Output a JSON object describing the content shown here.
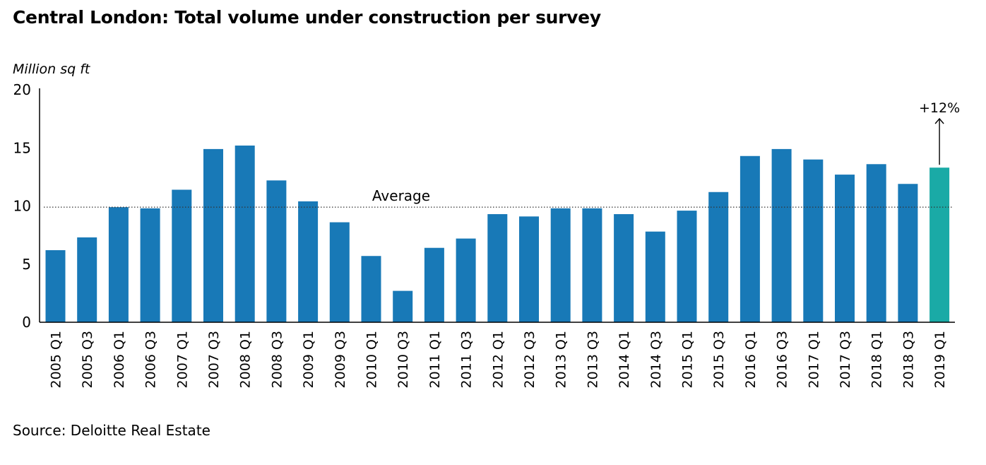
{
  "title": "Central London: Total volume under construction per survey",
  "source": "Source: Deloitte Real Estate",
  "colors": {
    "bar": "#1879b7",
    "highlight": "#1aaaa6",
    "axis": "#000000"
  },
  "chart_data": {
    "type": "bar",
    "ylabel": "Million sq ft",
    "ylim": [
      0,
      20
    ],
    "yticks": [
      0,
      5,
      10,
      15,
      20
    ],
    "categories": [
      "2005 Q1",
      "2005 Q3",
      "2006 Q1",
      "2006 Q3",
      "2007 Q1",
      "2007 Q3",
      "2008 Q1",
      "2008 Q3",
      "2009 Q1",
      "2009 Q3",
      "2010 Q1",
      "2010 Q3",
      "2011 Q1",
      "2011 Q3",
      "2012 Q1",
      "2012 Q3",
      "2013 Q1",
      "2013 Q3",
      "2014 Q1",
      "2014 Q3",
      "2015 Q1",
      "2015 Q3",
      "2016 Q1",
      "2016 Q3",
      "2017 Q1",
      "2017 Q3",
      "2018 Q1",
      "2018 Q3",
      "2019 Q1"
    ],
    "values": [
      6.2,
      7.3,
      9.9,
      9.8,
      11.4,
      14.9,
      15.2,
      12.2,
      10.4,
      8.6,
      5.7,
      2.7,
      6.4,
      7.2,
      9.3,
      9.1,
      9.8,
      9.8,
      9.3,
      7.8,
      9.6,
      11.2,
      14.3,
      14.9,
      14.0,
      12.7,
      13.6,
      11.9,
      13.3
    ],
    "highlight_index": 28,
    "reference_line": {
      "label": "Average",
      "value": 9.9,
      "style": "dotted"
    },
    "annotation": {
      "text": "+12%",
      "category": "2019 Q1",
      "arrow": "up"
    },
    "grid": false,
    "legend": false
  }
}
